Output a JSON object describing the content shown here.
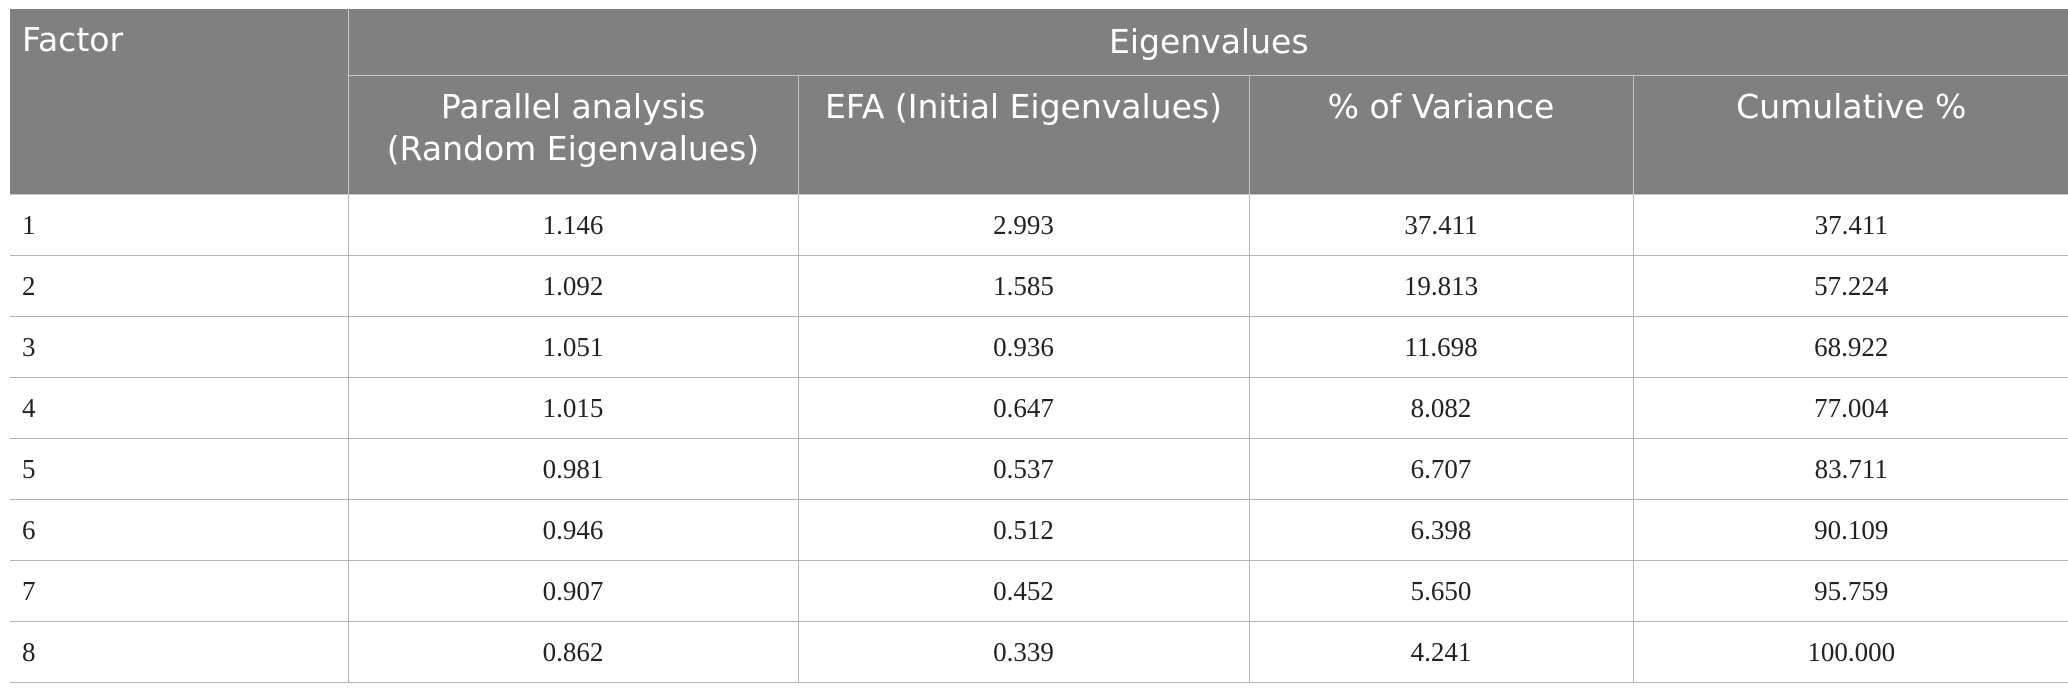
{
  "table": {
    "header": {
      "factor": "Factor",
      "group": "Eigenvalues",
      "columns": [
        "Parallel analysis (Random Eigenvalues)",
        "EFA (Initial Eigenvalues)",
        "% of Variance",
        "Cumulative %"
      ],
      "col1_line1": "Parallel analysis",
      "col1_line2": "(Random Eigenvalues)"
    },
    "rows": [
      [
        "1",
        "1.146",
        "2.993",
        "37.411",
        "37.411"
      ],
      [
        "2",
        "1.092",
        "1.585",
        "19.813",
        "57.224"
      ],
      [
        "3",
        "1.051",
        "0.936",
        "11.698",
        "68.922"
      ],
      [
        "4",
        "1.015",
        "0.647",
        "8.082",
        "77.004"
      ],
      [
        "5",
        "0.981",
        "0.537",
        "6.707",
        "83.711"
      ],
      [
        "6",
        "0.946",
        "0.512",
        "6.398",
        "90.109"
      ],
      [
        "7",
        "0.907",
        "0.452",
        "5.650",
        "95.759"
      ],
      [
        "8",
        "0.862",
        "0.339",
        "4.241",
        "100.000"
      ]
    ]
  }
}
